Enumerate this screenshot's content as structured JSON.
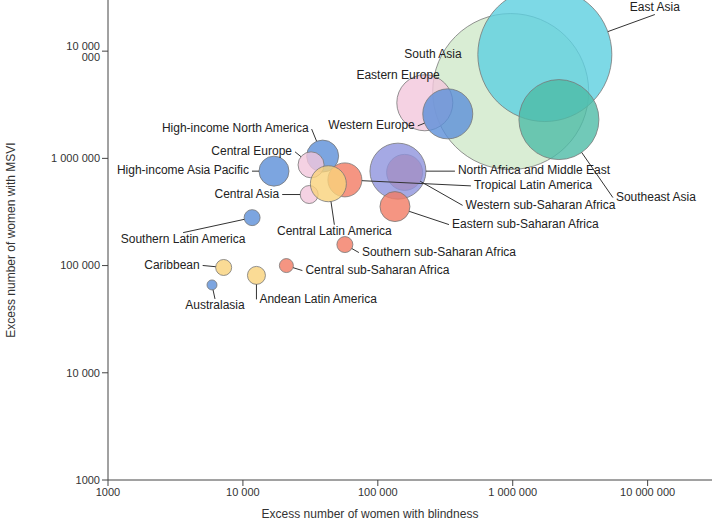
{
  "chart_data": {
    "type": "scatter",
    "x_label": "Excess number of women with blindness",
    "y_label": "Excess number of women with MSVI",
    "log": true,
    "grid": false,
    "labels": [
      "South Asia",
      "East Asia",
      "Southeast Asia",
      "Eastern Europe",
      "Western Europe",
      "Western sub-Saharan Africa",
      "North Africa and Middle East",
      "High-income North America",
      "Central Europe",
      "High-income Asia Pacific",
      "Central Asia",
      "Tropical Latin America",
      "Central Latin America",
      "Eastern sub-Saharan Africa",
      "Southern sub-Saharan Africa",
      "Southern Latin America",
      "Caribbean",
      "Andean Latin America",
      "Central sub-Saharan Africa",
      "Australasia"
    ],
    "x": [
      966000,
      1730000,
      2200000,
      223000,
      330000,
      158000,
      141000,
      39000,
      32000,
      17000,
      31000,
      57000,
      43000,
      134000,
      57000,
      11700,
      7200,
      12600,
      21000,
      5900
    ],
    "values": [
      4200000,
      9300000,
      2300000,
      3300000,
      2600000,
      740000,
      760000,
      1050000,
      870000,
      760000,
      460000,
      630000,
      580000,
      355000,
      157000,
      280000,
      96000,
      81000,
      100000,
      66000
    ],
    "sizes": [
      6084,
      4489,
      1600,
      784,
      625,
      324,
      784,
      256,
      169,
      225,
      81,
      289,
      324,
      225,
      64,
      64,
      64,
      81,
      49,
      25
    ],
    "colors": [
      "#cfe8c9",
      "#5ccfe0",
      "#4dbba6",
      "#f2c7dc",
      "#5b8ed8",
      "#f27b63",
      "#8f93dd",
      "#5b8ed8",
      "#f2c7dc",
      "#5b8ed8",
      "#f2c7dc",
      "#f27b63",
      "#f9d27a",
      "#f27b63",
      "#f27b63",
      "#5b8ed8",
      "#f9d27a",
      "#f9d27a",
      "#f27b63",
      "#5b8ed8"
    ],
    "xlim": [
      1000,
      30000000
    ],
    "ylim": [
      1000,
      30000000
    ],
    "xticks": [
      1000,
      {
        "value": 10000,
        "label": "10 000"
      },
      {
        "value": 100000,
        "label": "100 000"
      },
      {
        "value": 1000000,
        "label": "1 000 000"
      },
      {
        "value": 10000000,
        "label": "10 000 000"
      }
    ],
    "yticks": [
      1000,
      {
        "value": 10000,
        "label": "10 000"
      },
      {
        "value": 100000,
        "label": "100 000"
      },
      {
        "value": 1000000,
        "label": "1 000 000"
      },
      {
        "value": 10000000,
        "label": "10 000 000"
      }
    ]
  }
}
